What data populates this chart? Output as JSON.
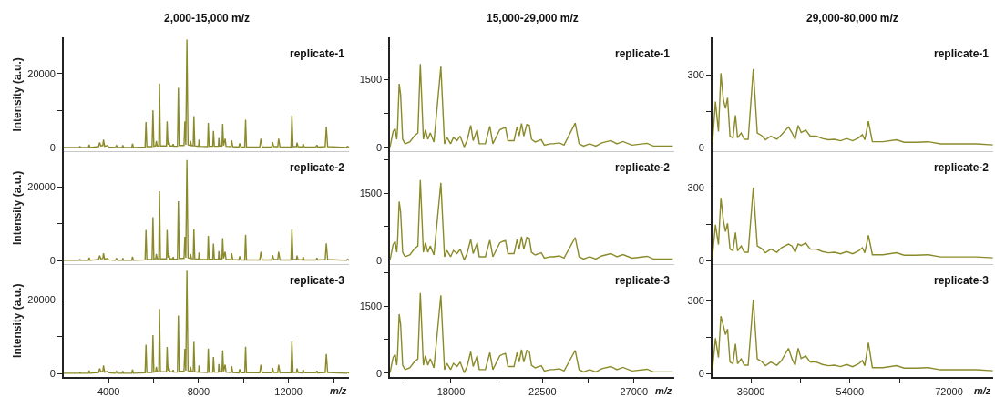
{
  "chart_data": [
    {
      "type": "line",
      "title": "2,000-15,000 m/z",
      "ylabel": "Intensity (a.u.)",
      "annotations": [
        "replicate-1"
      ],
      "tick_labels": "y",
      "xlim": [
        2000,
        14700
      ],
      "ylim": [
        -1000,
        29600
      ],
      "yticks": [
        0,
        {
          "value": 10000,
          "label": null
        },
        20000
      ],
      "grid": false,
      "series": [
        {
          "color": "#8a8a2a",
          "x": [
            2000,
            2700,
            2720,
            2750,
            3100,
            3130,
            3170,
            3550,
            3600,
            3650,
            3740,
            3770,
            3820,
            3950,
            4000,
            4300,
            4350,
            4400,
            4600,
            4630,
            4660,
            5030,
            5060,
            5100,
            5620,
            5660,
            5700,
            5930,
            5970,
            6010,
            6090,
            6120,
            6160,
            6230,
            6260,
            6300,
            6570,
            6600,
            6640,
            6670,
            6720,
            6850,
            6870,
            6900,
            7060,
            7100,
            7140,
            7350,
            7390,
            7430,
            7480,
            7530,
            7620,
            7640,
            7680,
            7760,
            7790,
            7830,
            8000,
            8020,
            8060,
            8400,
            8430,
            8470,
            8630,
            8660,
            8700,
            8880,
            8900,
            8930,
            9040,
            9070,
            9110,
            9180,
            9220,
            9440,
            9470,
            9520,
            9790,
            9830,
            9880,
            10050,
            10090,
            10130,
            10720,
            10770,
            10830,
            11250,
            11290,
            11340,
            11520,
            11560,
            11620,
            12110,
            12150,
            12200,
            12350,
            12380,
            12420,
            12620,
            12650,
            12700,
            13220,
            13260,
            13300,
            13630,
            13680,
            13740,
            14580,
            14620,
            14700
          ],
          "values": [
            100,
            100,
            400,
            100,
            100,
            800,
            100,
            300,
            1400,
            500,
            600,
            2200,
            400,
            600,
            200,
            100,
            600,
            100,
            100,
            700,
            100,
            100,
            1100,
            100,
            200,
            6900,
            300,
            300,
            10100,
            400,
            500,
            1800,
            500,
            500,
            17300,
            500,
            500,
            7100,
            800,
            2000,
            500,
            500,
            1000,
            400,
            400,
            16100,
            600,
            600,
            7100,
            800,
            29100,
            800,
            600,
            1800,
            600,
            500,
            8500,
            500,
            400,
            2200,
            400,
            300,
            6700,
            400,
            400,
            4500,
            400,
            400,
            2600,
            500,
            500,
            6400,
            600,
            2400,
            400,
            300,
            2000,
            300,
            200,
            1200,
            200,
            200,
            7500,
            200,
            200,
            2400,
            200,
            200,
            1500,
            300,
            300,
            2400,
            200,
            200,
            8700,
            300,
            300,
            1400,
            300,
            200,
            1000,
            200,
            200,
            700,
            200,
            300,
            5600,
            300,
            100,
            400,
            100
          ]
        }
      ]
    },
    {
      "type": "line",
      "title": "15,000-29,000 m/z",
      "annotations": [
        "replicate-1"
      ],
      "tick_labels": "y",
      "xlim": [
        15000,
        29000
      ],
      "ylim": [
        -90,
        2430
      ],
      "yticks": [
        0,
        {
          "value": 750,
          "label": null
        },
        1500,
        {
          "value": 2250,
          "label": null
        }
      ],
      "grid": false,
      "series": [
        {
          "color": "#8a8a2a",
          "x": [
            15000,
            15150,
            15250,
            15330,
            15370,
            15450,
            15520,
            15620,
            15740,
            15970,
            16190,
            16370,
            16490,
            16640,
            16740,
            16860,
            16980,
            17160,
            17500,
            17680,
            17800,
            17980,
            18120,
            18300,
            18450,
            18650,
            18790,
            18970,
            19090,
            19290,
            19390,
            19690,
            19910,
            20060,
            20400,
            20540,
            20680,
            20800,
            21100,
            21250,
            21350,
            21470,
            21580,
            21730,
            21850,
            21960,
            22140,
            22440,
            22590,
            22890,
            23040,
            23330,
            23560,
            24110,
            24300,
            24520,
            24820,
            25120,
            25420,
            25860,
            26160,
            26460,
            26900,
            27650,
            27950,
            28910
          ],
          "values": [
            10,
            350,
            420,
            180,
            420,
            1410,
            1170,
            180,
            80,
            120,
            250,
            320,
            1850,
            180,
            390,
            180,
            320,
            120,
            1790,
            80,
            220,
            80,
            220,
            150,
            250,
            10,
            150,
            490,
            150,
            390,
            80,
            80,
            470,
            80,
            390,
            420,
            440,
            150,
            150,
            460,
            250,
            530,
            250,
            510,
            490,
            180,
            120,
            170,
            50,
            80,
            80,
            100,
            50,
            540,
            80,
            30,
            80,
            30,
            100,
            150,
            80,
            130,
            50,
            90,
            30,
            30
          ]
        }
      ]
    },
    {
      "type": "line",
      "title": "29,000-80,000 m/z",
      "annotations": [
        "replicate-1"
      ],
      "tick_labels": "y",
      "xlim": [
        29000,
        80000
      ],
      "ylim": [
        -16,
        452
      ],
      "yticks": [
        0,
        {
          "value": 150,
          "label": null
        },
        300
      ],
      "grid": false,
      "series": [
        {
          "color": "#8a8a2a",
          "x": [
            29000,
            29550,
            30100,
            30540,
            30980,
            31370,
            31750,
            32190,
            32740,
            33180,
            33570,
            34230,
            34780,
            35500,
            36430,
            37150,
            37970,
            38630,
            39620,
            40720,
            41550,
            42820,
            43480,
            44030,
            44580,
            45130,
            45960,
            46780,
            47880,
            48980,
            50080,
            51190,
            52290,
            53390,
            54490,
            55590,
            56250,
            56690,
            57350,
            58070,
            60000,
            62470,
            63850,
            66050,
            68250,
            70450,
            73760,
            77060,
            80000
          ],
          "values": [
            15,
            189,
            66,
            306,
            199,
            161,
            205,
            47,
            40,
            133,
            40,
            60,
            34,
            34,
            323,
            60,
            49,
            32,
            47,
            34,
            53,
            85,
            60,
            34,
            91,
            62,
            72,
            47,
            47,
            37,
            32,
            34,
            28,
            37,
            28,
            40,
            53,
            32,
            108,
            24,
            24,
            32,
            22,
            22,
            24,
            15,
            15,
            15,
            11
          ]
        }
      ]
    },
    {
      "type": "line",
      "ylabel": "Intensity (a.u.)",
      "annotations": [
        "replicate-2"
      ],
      "tick_labels": "y",
      "xlim": [
        2000,
        14700
      ],
      "ylim": [
        -1000,
        29600
      ],
      "yticks": [
        0,
        {
          "value": 10000,
          "label": null
        },
        20000
      ],
      "grid": false,
      "series": [
        {
          "color": "#8a8a2a",
          "x": [
            2000,
            2700,
            2720,
            2750,
            3100,
            3130,
            3170,
            3550,
            3600,
            3650,
            3740,
            3770,
            3820,
            3950,
            4000,
            4300,
            4350,
            4400,
            4600,
            4630,
            4660,
            5030,
            5060,
            5100,
            5620,
            5660,
            5700,
            5930,
            5970,
            6010,
            6090,
            6120,
            6160,
            6230,
            6260,
            6300,
            6570,
            6600,
            6640,
            6670,
            6720,
            6850,
            6870,
            6900,
            7060,
            7100,
            7140,
            7350,
            7390,
            7430,
            7480,
            7530,
            7620,
            7640,
            7680,
            7760,
            7790,
            7830,
            8000,
            8020,
            8060,
            8400,
            8430,
            8470,
            8630,
            8660,
            8700,
            8880,
            8900,
            8930,
            9040,
            9070,
            9110,
            9180,
            9220,
            9440,
            9470,
            9520,
            9790,
            9830,
            9880,
            10050,
            10090,
            10130,
            10720,
            10770,
            10830,
            11250,
            11290,
            11340,
            11520,
            11560,
            11620,
            12110,
            12150,
            12200,
            12350,
            12380,
            12420,
            12620,
            12650,
            12700,
            13220,
            13260,
            13300,
            13630,
            13680,
            13740,
            14580,
            14620,
            14700
          ],
          "values": [
            100,
            100,
            400,
            100,
            100,
            800,
            100,
            300,
            1400,
            500,
            600,
            2000,
            400,
            600,
            200,
            100,
            600,
            100,
            100,
            700,
            100,
            100,
            1100,
            100,
            200,
            8300,
            300,
            300,
            11800,
            400,
            500,
            1800,
            500,
            500,
            18800,
            500,
            500,
            8300,
            800,
            2000,
            500,
            500,
            1000,
            400,
            400,
            16100,
            600,
            600,
            6500,
            800,
            27300,
            800,
            600,
            1800,
            600,
            500,
            8500,
            500,
            400,
            2200,
            400,
            300,
            6700,
            400,
            400,
            4600,
            400,
            400,
            2600,
            500,
            500,
            6100,
            600,
            2400,
            400,
            300,
            2000,
            300,
            200,
            1200,
            200,
            200,
            7000,
            200,
            200,
            2400,
            200,
            200,
            1500,
            300,
            300,
            2400,
            200,
            200,
            8500,
            300,
            300,
            1400,
            300,
            200,
            1000,
            200,
            200,
            700,
            200,
            300,
            4700,
            300,
            100,
            400,
            100
          ]
        }
      ]
    },
    {
      "type": "line",
      "annotations": [
        "replicate-2"
      ],
      "tick_labels": "y",
      "xlim": [
        15000,
        29000
      ],
      "ylim": [
        -90,
        2430
      ],
      "yticks": [
        0,
        {
          "value": 750,
          "label": null
        },
        1500,
        {
          "value": 2250,
          "label": null
        }
      ],
      "grid": false,
      "series": [
        {
          "color": "#8a8a2a",
          "x": [
            15000,
            15150,
            15250,
            15330,
            15370,
            15450,
            15520,
            15620,
            15740,
            15970,
            16190,
            16370,
            16490,
            16640,
            16740,
            16860,
            16980,
            17160,
            17500,
            17680,
            17800,
            17980,
            18120,
            18300,
            18450,
            18650,
            18790,
            18970,
            19090,
            19290,
            19390,
            19690,
            19910,
            20060,
            20400,
            20540,
            20680,
            20800,
            21100,
            21250,
            21350,
            21470,
            21580,
            21730,
            21850,
            21960,
            22140,
            22440,
            22590,
            22890,
            23040,
            23330,
            23560,
            24110,
            24300,
            24520,
            24820,
            25120,
            25420,
            25860,
            26160,
            26460,
            26900,
            27650,
            27950,
            28910
          ],
          "values": [
            10,
            350,
            420,
            180,
            420,
            1310,
            1080,
            180,
            80,
            120,
            250,
            320,
            1790,
            180,
            390,
            180,
            320,
            120,
            1730,
            80,
            220,
            80,
            220,
            150,
            250,
            10,
            150,
            470,
            150,
            390,
            80,
            80,
            450,
            80,
            390,
            420,
            440,
            150,
            150,
            460,
            250,
            530,
            250,
            510,
            490,
            180,
            120,
            170,
            50,
            80,
            80,
            100,
            50,
            510,
            80,
            30,
            80,
            30,
            100,
            150,
            80,
            130,
            50,
            90,
            30,
            30
          ]
        }
      ]
    },
    {
      "type": "line",
      "annotations": [
        "replicate-2"
      ],
      "tick_labels": "y",
      "xlim": [
        29000,
        80000
      ],
      "ylim": [
        -16,
        452
      ],
      "yticks": [
        0,
        {
          "value": 150,
          "label": null
        },
        300
      ],
      "grid": false,
      "series": [
        {
          "color": "#8a8a2a",
          "x": [
            29000,
            29550,
            30100,
            30540,
            30980,
            31370,
            31750,
            32190,
            32740,
            33180,
            33570,
            34230,
            34780,
            35500,
            36430,
            37150,
            37970,
            38630,
            39620,
            40720,
            41550,
            42820,
            43480,
            44030,
            44580,
            45130,
            45960,
            46780,
            47880,
            48980,
            50080,
            51190,
            52290,
            53390,
            54490,
            55590,
            56250,
            56690,
            57350,
            58070,
            60000,
            62470,
            63850,
            66050,
            68250,
            70450,
            73760,
            77060,
            80000
          ],
          "values": [
            15,
            148,
            66,
            260,
            167,
            120,
            154,
            47,
            40,
            116,
            40,
            60,
            34,
            34,
            302,
            60,
            49,
            32,
            47,
            34,
            53,
            68,
            60,
            34,
            68,
            62,
            72,
            47,
            47,
            37,
            32,
            34,
            28,
            37,
            28,
            40,
            53,
            32,
            104,
            24,
            24,
            32,
            22,
            22,
            24,
            15,
            15,
            15,
            11
          ]
        }
      ]
    },
    {
      "type": "line",
      "ylabel": "Intensity (a.u.)",
      "xlabel": "m/z",
      "annotations": [
        "replicate-3"
      ],
      "xlim": [
        2000,
        14700
      ],
      "xticks": [
        4000,
        {
          "value": 6000,
          "label": null
        },
        8000,
        {
          "value": 10000,
          "label": null
        },
        12000,
        {
          "value": 14000,
          "label": null
        }
      ],
      "ylim": [
        -1000,
        29600
      ],
      "yticks": [
        0,
        {
          "value": 10000,
          "label": null
        },
        20000
      ],
      "grid": false,
      "series": [
        {
          "color": "#8a8a2a",
          "x": [
            2000,
            2700,
            2720,
            2750,
            3100,
            3130,
            3170,
            3550,
            3600,
            3650,
            3740,
            3770,
            3820,
            3950,
            4000,
            4300,
            4350,
            4400,
            4600,
            4630,
            4660,
            5030,
            5060,
            5100,
            5620,
            5660,
            5700,
            5930,
            5970,
            6010,
            6090,
            6120,
            6160,
            6230,
            6260,
            6300,
            6570,
            6600,
            6640,
            6670,
            6720,
            6850,
            6870,
            6900,
            7060,
            7100,
            7140,
            7350,
            7390,
            7430,
            7480,
            7530,
            7620,
            7640,
            7680,
            7760,
            7790,
            7830,
            8000,
            8020,
            8060,
            8400,
            8430,
            8470,
            8630,
            8660,
            8700,
            8880,
            8900,
            8930,
            9040,
            9070,
            9110,
            9180,
            9220,
            9440,
            9470,
            9520,
            9790,
            9830,
            9880,
            10050,
            10090,
            10130,
            10720,
            10770,
            10830,
            11250,
            11290,
            11340,
            11520,
            11560,
            11620,
            12110,
            12150,
            12200,
            12350,
            12380,
            12420,
            12620,
            12650,
            12700,
            13220,
            13260,
            13300,
            13630,
            13680,
            13740,
            14580,
            14620,
            14700
          ],
          "values": [
            100,
            100,
            400,
            100,
            100,
            800,
            100,
            300,
            1400,
            500,
            600,
            2200,
            400,
            600,
            200,
            100,
            600,
            100,
            100,
            700,
            100,
            100,
            1100,
            100,
            200,
            7800,
            300,
            300,
            10400,
            400,
            500,
            1800,
            500,
            500,
            17500,
            500,
            500,
            7200,
            800,
            2000,
            500,
            500,
            1000,
            400,
            400,
            15700,
            600,
            600,
            6700,
            800,
            27900,
            800,
            600,
            1800,
            600,
            500,
            8600,
            500,
            400,
            2200,
            400,
            300,
            6800,
            400,
            400,
            4500,
            400,
            400,
            2600,
            500,
            500,
            6300,
            600,
            2400,
            400,
            300,
            2000,
            300,
            200,
            1200,
            200,
            200,
            7300,
            200,
            200,
            2400,
            200,
            200,
            1500,
            300,
            300,
            2400,
            200,
            200,
            8700,
            300,
            300,
            1400,
            300,
            200,
            1000,
            200,
            200,
            700,
            200,
            300,
            5300,
            300,
            100,
            400,
            100
          ]
        }
      ]
    },
    {
      "type": "line",
      "xlabel": "m/z",
      "annotations": [
        "replicate-3"
      ],
      "xlim": [
        15000,
        29000
      ],
      "xticks": [
        {
          "value": 15750,
          "label": null
        },
        18000,
        {
          "value": 20250,
          "label": null
        },
        22500,
        {
          "value": 24750,
          "label": null
        },
        27000
      ],
      "ylim": [
        -90,
        2430
      ],
      "yticks": [
        0,
        {
          "value": 750,
          "label": null
        },
        1500,
        {
          "value": 2250,
          "label": null
        }
      ],
      "grid": false,
      "series": [
        {
          "color": "#8a8a2a",
          "x": [
            15000,
            15150,
            15250,
            15330,
            15370,
            15450,
            15520,
            15620,
            15740,
            15970,
            16190,
            16370,
            16490,
            16640,
            16740,
            16860,
            16980,
            17160,
            17500,
            17680,
            17800,
            17980,
            18120,
            18300,
            18450,
            18650,
            18790,
            18970,
            19090,
            19290,
            19390,
            19690,
            19910,
            20060,
            20400,
            20540,
            20680,
            20800,
            21100,
            21250,
            21350,
            21470,
            21580,
            21730,
            21850,
            21960,
            22140,
            22440,
            22590,
            22890,
            23040,
            23330,
            23560,
            24110,
            24300,
            24520,
            24820,
            25120,
            25420,
            25860,
            26160,
            26460,
            26900,
            27650,
            27950,
            28910
          ],
          "values": [
            10,
            350,
            420,
            180,
            420,
            1320,
            1090,
            180,
            80,
            120,
            250,
            320,
            1790,
            180,
            390,
            180,
            320,
            120,
            1740,
            80,
            220,
            80,
            220,
            150,
            250,
            10,
            150,
            480,
            150,
            390,
            80,
            80,
            460,
            80,
            390,
            420,
            440,
            150,
            150,
            460,
            250,
            530,
            250,
            510,
            490,
            180,
            120,
            170,
            50,
            80,
            80,
            100,
            50,
            510,
            80,
            30,
            80,
            30,
            100,
            150,
            80,
            130,
            50,
            90,
            30,
            30
          ]
        }
      ]
    },
    {
      "type": "line",
      "xlabel": "m/z",
      "annotations": [
        "replicate-3"
      ],
      "xlim": [
        29000,
        80000
      ],
      "xticks": [
        36000,
        {
          "value": 45000,
          "label": null
        },
        54000,
        {
          "value": 63000,
          "label": null
        },
        72000
      ],
      "ylim": [
        -16,
        452
      ],
      "yticks": [
        0,
        {
          "value": 150,
          "label": null
        },
        300
      ],
      "grid": false,
      "series": [
        {
          "color": "#8a8a2a",
          "x": [
            29000,
            29550,
            30100,
            30540,
            30980,
            31370,
            31750,
            32190,
            32740,
            33180,
            33570,
            34230,
            34780,
            35500,
            36430,
            37150,
            37970,
            38630,
            39620,
            40720,
            41550,
            42820,
            43480,
            44030,
            44580,
            45130,
            45960,
            46780,
            47880,
            48980,
            50080,
            51190,
            52290,
            53390,
            54490,
            55590,
            56250,
            56690,
            57350,
            58070,
            60000,
            62470,
            63850,
            66050,
            68250,
            70450,
            73760,
            77060,
            80000
          ],
          "values": [
            15,
            146,
            66,
            237,
            199,
            161,
            184,
            47,
            40,
            123,
            40,
            60,
            34,
            34,
            306,
            60,
            49,
            32,
            47,
            34,
            53,
            104,
            60,
            34,
            104,
            62,
            72,
            47,
            47,
            37,
            32,
            34,
            28,
            37,
            28,
            40,
            53,
            32,
            127,
            24,
            24,
            32,
            22,
            22,
            24,
            15,
            15,
            15,
            11
          ]
        }
      ]
    }
  ]
}
